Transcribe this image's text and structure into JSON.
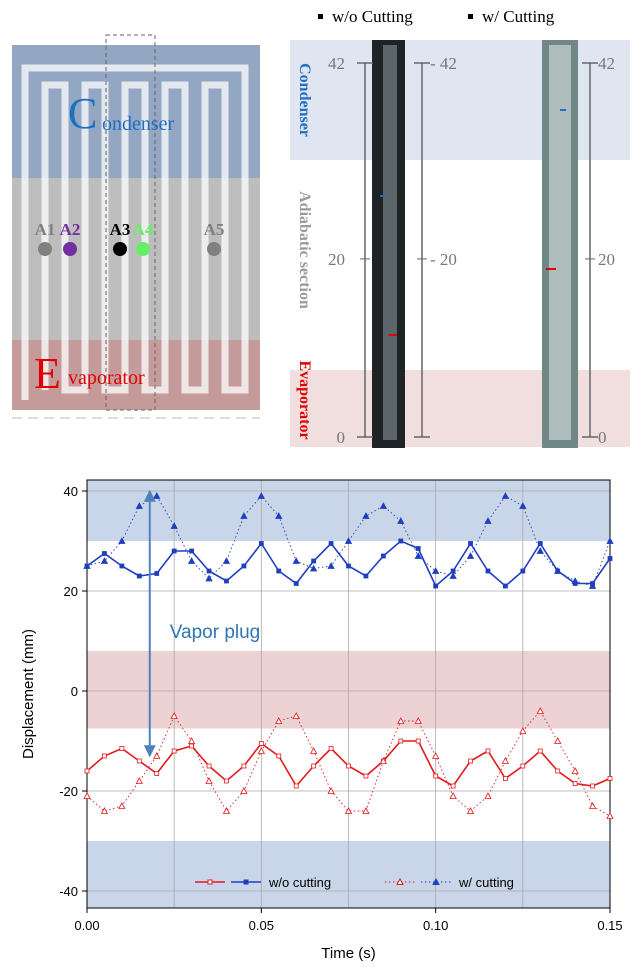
{
  "legend_top": [
    "w/o Cutting",
    "w/ Cutting"
  ],
  "schematic": {
    "condenser_initial": "C",
    "condenser_rest": "ondenser",
    "evaporator_initial": "E",
    "evaporator_rest": "vaporator",
    "points": [
      "A1",
      "A2",
      "A3",
      "A4",
      "A5"
    ],
    "point_colors": [
      "#808080",
      "#7030a0",
      "#000000",
      "#66ee66",
      "#808080"
    ]
  },
  "photos": {
    "section_labels": [
      "Condenser",
      "Adiabatic section",
      "Evaporator"
    ],
    "section_colors": [
      "#1f6fc0",
      "#9a9a9a",
      "#e00000"
    ],
    "lim": [
      0,
      42
    ],
    "scales": [
      {
        "ticks": [
          0,
          20,
          42
        ]
      },
      {
        "ticks": [
          {
            "value": 20,
            "label": "- 20"
          },
          {
            "value": 42,
            "label": "- 42"
          }
        ]
      },
      {
        "ticks": [
          0,
          20,
          42
        ]
      }
    ]
  },
  "chart_data": {
    "type": "line",
    "xlabel": "Time (s)",
    "ylabel": "Displacement (mm)",
    "xlim": [
      0,
      0.15
    ],
    "ylim": [
      -43.4,
      42.2
    ],
    "xticks": [
      {
        "value": 0,
        "label": "0.00"
      },
      0.05,
      {
        "value": 0.1,
        "label": "0.10"
      },
      0.15
    ],
    "xminor": [
      0.025,
      0.075,
      0.125
    ],
    "yticks": [
      40,
      20,
      0,
      -20,
      -40
    ],
    "grid": true,
    "bands": [
      {
        "from": 30,
        "to": 42.2,
        "color": "#c9d5e8"
      },
      {
        "from": -7.5,
        "to": 8,
        "color": "#ecd2d2"
      },
      {
        "from": -43.4,
        "to": -30,
        "color": "#c9d5e8"
      }
    ],
    "annotation": "Vapor plug",
    "arrow": {
      "x": 0.018,
      "from": 40,
      "to": -13,
      "color": "#4f81bd"
    },
    "x": [
      0,
      0.005,
      0.01,
      0.015,
      0.02,
      0.025,
      0.03,
      0.035,
      0.04,
      0.045,
      0.05,
      0.055,
      0.06,
      0.065,
      0.07,
      0.075,
      0.08,
      0.085,
      0.09,
      0.095,
      0.1,
      0.105,
      0.11,
      0.115,
      0.12,
      0.125,
      0.13,
      0.135,
      0.14,
      0.145,
      0.15
    ],
    "series": [
      {
        "color": "#e31a1c",
        "style": "solid",
        "marker": "square",
        "filled": false,
        "values": [
          -16,
          -13,
          -11.5,
          -14,
          -16.5,
          -12,
          -11,
          -15,
          -18,
          -15,
          -10.5,
          -13,
          -19,
          -15,
          -11.5,
          -15,
          -17,
          -14,
          -10,
          -10,
          -17,
          -19,
          -14,
          -12,
          -17.5,
          -15,
          -12,
          -16,
          -18.5,
          -19,
          -17.5
        ]
      },
      {
        "name": "w/o cutting",
        "color": "#1f3fbf",
        "style": "solid",
        "marker": "square",
        "filled": true,
        "values": [
          25,
          27.5,
          25,
          23,
          23.5,
          28,
          28,
          24,
          22,
          25,
          29.5,
          24,
          21.5,
          26,
          29.5,
          25,
          23,
          27,
          30,
          28.5,
          21,
          24,
          29.5,
          24,
          21,
          24,
          29.5,
          24,
          21.5,
          21.5,
          26.5
        ]
      },
      {
        "color": "#e31a1c",
        "style": "dotted",
        "marker": "triangle",
        "filled": false,
        "values": [
          -21,
          -24,
          -23,
          -18,
          -13,
          -5,
          -10,
          -18,
          -24,
          -20,
          -12,
          -6,
          -5,
          -12,
          -20,
          -24,
          -24,
          -14,
          -6,
          -6,
          -13,
          -21,
          -24,
          -21,
          -14,
          -8,
          -4,
          -10,
          -16,
          -23,
          -25
        ]
      },
      {
        "name": "w/   cutting",
        "color": "#1f3fbf",
        "style": "dotted",
        "marker": "triangle",
        "filled": true,
        "values": [
          25,
          26,
          30,
          37,
          39,
          33,
          26,
          22.5,
          26,
          35,
          39,
          35,
          26,
          24.5,
          25,
          30,
          35,
          37,
          34,
          27,
          24,
          23,
          27,
          34,
          39,
          37,
          28,
          24,
          22,
          21,
          30
        ]
      }
    ]
  }
}
